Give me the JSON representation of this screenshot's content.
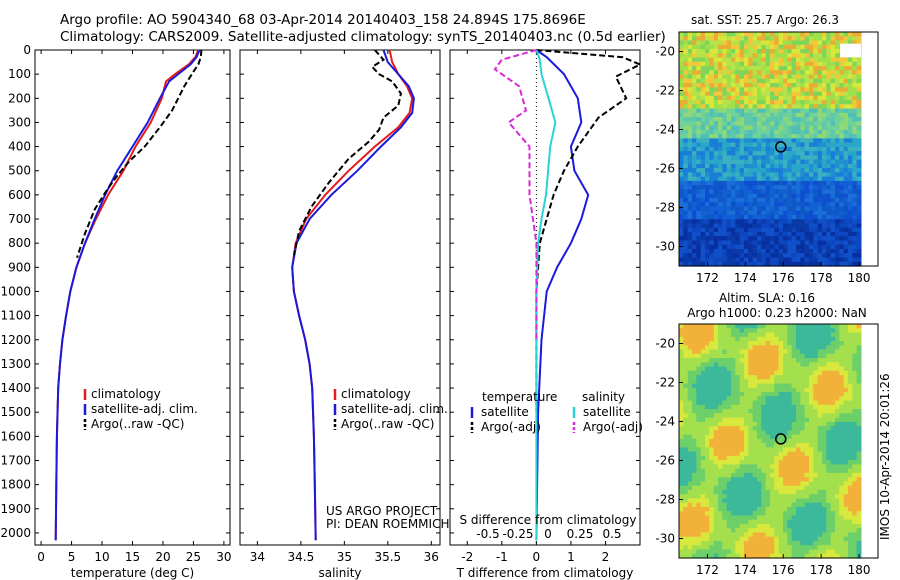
{
  "header": {
    "title_line1": "Argo profile: AO 5904340_68 03-Apr-2014 20140403_158 24.894S 175.8696E",
    "title_line2": "Climatology: CARS2009. Satellite-adjusted climatology: synTS_20140403.nc (0.5d earlier)"
  },
  "side_stamp": "IMOS 10-Apr-2014 20:01:26",
  "colors": {
    "climatology": "#e41a1c",
    "satellite": "#1a1adc",
    "argo": "#000000",
    "salinity_sat": "#29d3d6",
    "salinity_argo": "#d62bd6"
  },
  "chart_data": [
    {
      "type": "line",
      "panel": "temperature",
      "xlabel": "temperature (deg C)",
      "ylabel": "",
      "xlim": [
        -1,
        31
      ],
      "ylim": [
        2050,
        0
      ],
      "xticks": [
        0,
        5,
        10,
        15,
        20,
        25,
        30
      ],
      "yticks": [
        0,
        100,
        200,
        300,
        400,
        500,
        600,
        700,
        800,
        900,
        1000,
        1100,
        1200,
        1300,
        1400,
        1500,
        1600,
        1700,
        1800,
        1900,
        2000
      ],
      "legend": [
        "climatology",
        "satellite-adj. clim.",
        "Argo(..raw -QC)"
      ],
      "series": [
        {
          "name": "climatology",
          "color": "#e41a1c",
          "style": "solid",
          "x": [
            25.8,
            25.3,
            24.2,
            22.0,
            20.5,
            19.8,
            18.0,
            15.5,
            13.5,
            11.0,
            9.0,
            7.2,
            5.8,
            4.8,
            4.1,
            3.5,
            3.1,
            2.8,
            2.6,
            2.5,
            2.4
          ],
          "y": [
            0,
            30,
            60,
            100,
            130,
            200,
            300,
            400,
            500,
            600,
            700,
            800,
            900,
            1000,
            1100,
            1200,
            1300,
            1400,
            1600,
            1800,
            2030
          ]
        },
        {
          "name": "satellite-adj. clim.",
          "color": "#1a1adc",
          "style": "solid",
          "x": [
            26.0,
            25.5,
            24.5,
            22.5,
            21.0,
            19.5,
            17.5,
            15.0,
            12.5,
            10.5,
            8.8,
            7.2,
            5.8,
            4.8,
            4.1,
            3.5,
            3.1,
            2.8,
            2.6,
            2.5,
            2.4
          ],
          "y": [
            0,
            30,
            60,
            100,
            130,
            200,
            300,
            400,
            500,
            600,
            700,
            800,
            900,
            1000,
            1100,
            1200,
            1300,
            1400,
            1600,
            1800,
            2030
          ]
        },
        {
          "name": "Argo(..raw -QC)",
          "color": "#000000",
          "style": "dashed",
          "x": [
            26.3,
            26.2,
            25.8,
            25.0,
            23.5,
            21.5,
            19.5,
            17.0,
            14.5,
            12.5,
            10.8,
            8.8,
            7.2,
            5.9
          ],
          "y": [
            0,
            30,
            60,
            90,
            150,
            250,
            320,
            400,
            460,
            520,
            580,
            660,
            760,
            860
          ]
        }
      ]
    },
    {
      "type": "line",
      "panel": "salinity",
      "xlabel": "salinity",
      "ylabel": "",
      "xlim": [
        33.8,
        36.1
      ],
      "ylim": [
        2050,
        0
      ],
      "xticks": [
        34,
        34.5,
        35,
        35.5,
        36
      ],
      "legend": [
        "climatology",
        "satellite-adj. clim.",
        "Argo(..raw -QC)"
      ],
      "annotation": [
        "US ARGO PROJECT",
        "PI: DEAN ROEMMICH"
      ],
      "series": [
        {
          "name": "climatology",
          "color": "#e41a1c",
          "style": "solid",
          "x": [
            35.52,
            35.55,
            35.62,
            35.72,
            35.78,
            35.75,
            35.62,
            35.35,
            35.05,
            34.78,
            34.56,
            34.44,
            34.4,
            34.42,
            34.48,
            34.55,
            34.6,
            34.63,
            34.65,
            34.66,
            34.67
          ],
          "y": [
            0,
            50,
            100,
            150,
            200,
            260,
            320,
            400,
            500,
            600,
            700,
            800,
            900,
            1000,
            1100,
            1200,
            1300,
            1400,
            1600,
            1800,
            2030
          ]
        },
        {
          "name": "satellite-adj. clim.",
          "color": "#1a1adc",
          "style": "solid",
          "x": [
            35.45,
            35.5,
            35.62,
            35.74,
            35.8,
            35.78,
            35.65,
            35.42,
            35.15,
            34.85,
            34.6,
            34.45,
            34.4,
            34.42,
            34.48,
            34.55,
            34.6,
            34.63,
            34.65,
            34.66,
            34.67
          ],
          "y": [
            0,
            50,
            100,
            150,
            200,
            260,
            320,
            400,
            500,
            600,
            700,
            800,
            900,
            1000,
            1100,
            1200,
            1300,
            1400,
            1600,
            1800,
            2030
          ]
        },
        {
          "name": "Argo(..raw -QC)",
          "color": "#000000",
          "style": "dashed",
          "x": [
            35.35,
            35.45,
            35.32,
            35.4,
            35.55,
            35.65,
            35.62,
            35.45,
            35.4,
            35.28,
            35.05,
            34.82,
            34.62,
            34.48,
            34.42
          ],
          "y": [
            0,
            40,
            70,
            100,
            130,
            180,
            230,
            280,
            330,
            380,
            450,
            550,
            650,
            750,
            850
          ]
        }
      ]
    },
    {
      "type": "line",
      "panel": "difference",
      "xlabel": "T difference from climatology",
      "xlabel_top": "S difference from climatology",
      "xlim": [
        -2.5,
        3.0
      ],
      "xticks": [
        -2,
        -1,
        0,
        1,
        2
      ],
      "xticks_top": [
        "-0.5",
        "-0.25",
        "0",
        "0.25",
        "0.5"
      ],
      "ylim": [
        2050,
        0
      ],
      "legend_headers": [
        "temperature",
        "salinity"
      ],
      "legend": [
        "satellite",
        "Argo(-adj)",
        "satellite",
        "Argo(-adj)"
      ],
      "series": [
        {
          "name": "satellite",
          "color": "#1a1adc",
          "style": "solid",
          "x": [
            0.0,
            0.3,
            0.8,
            1.2,
            1.3,
            1.0,
            1.1,
            1.5,
            1.3,
            1.0,
            0.6,
            0.3,
            0.15,
            0.05,
            0.0
          ],
          "y": [
            0,
            30,
            100,
            200,
            300,
            400,
            500,
            600,
            700,
            800,
            900,
            1000,
            1200,
            1500,
            2030
          ]
        },
        {
          "name": "Argo(-adj)",
          "color": "#000000",
          "style": "dashed",
          "x": [
            0.0,
            2.5,
            3.0,
            2.3,
            2.6,
            1.8,
            1.2,
            0.8,
            0.5,
            0.3,
            0.1,
            0.0,
            0.0
          ],
          "y": [
            0,
            30,
            60,
            110,
            200,
            280,
            400,
            500,
            600,
            700,
            800,
            1000,
            1500
          ]
        },
        {
          "name": "satellite",
          "color": "#29d3d6",
          "style": "solid",
          "x": [
            0.0,
            0.1,
            0.15,
            0.35,
            0.55,
            0.4,
            0.28,
            0.15,
            0.05,
            0.0,
            0.0
          ],
          "y": [
            0,
            40,
            100,
            200,
            300,
            400,
            600,
            700,
            800,
            1000,
            2030
          ]
        },
        {
          "name": "Argo(-adj)",
          "color": "#d62bd6",
          "style": "dashed",
          "x": [
            0.0,
            -1.0,
            -1.2,
            -0.5,
            -0.3,
            -0.8,
            -0.2,
            -0.2,
            0.0,
            0.0
          ],
          "y": [
            0,
            40,
            80,
            150,
            250,
            300,
            400,
            600,
            800,
            1200
          ]
        }
      ]
    },
    {
      "type": "heatmap",
      "panel": "sst_map",
      "title": "sat. SST: 25.7 Argo: 26.3",
      "xticks": [
        172,
        174,
        176,
        178,
        180
      ],
      "yticks": [
        -20,
        -22,
        -24,
        -26,
        -28,
        -30
      ],
      "xlim": [
        170.5,
        181
      ],
      "ylim": [
        -31,
        -19
      ],
      "marker": {
        "lon": 175.87,
        "lat": -24.894
      }
    },
    {
      "type": "heatmap",
      "panel": "sla_map",
      "title": "Altim. SLA: 0.16",
      "subtitle": "Argo h1000: 0.23 h2000: NaN",
      "xticks": [
        172,
        174,
        176,
        178,
        180
      ],
      "yticks": [
        -20,
        -22,
        -24,
        -26,
        -28,
        -30
      ],
      "xlim": [
        170.5,
        181
      ],
      "ylim": [
        -31,
        -19
      ],
      "marker": {
        "lon": 175.87,
        "lat": -24.894
      }
    }
  ]
}
